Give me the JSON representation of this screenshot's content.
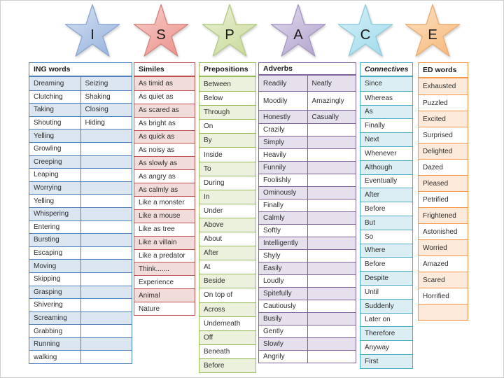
{
  "stars": [
    {
      "letter": "I",
      "light": "#d6e1f3",
      "dark": "#9db8e0",
      "stroke": "#8ca6cf"
    },
    {
      "letter": "S",
      "light": "#f8d2cf",
      "dark": "#ec968f",
      "stroke": "#d3847e"
    },
    {
      "letter": "P",
      "light": "#eaf2d8",
      "dark": "#cbdc9f",
      "stroke": "#b4ca85"
    },
    {
      "letter": "A",
      "light": "#e2dced",
      "dark": "#b7a9d1",
      "stroke": "#a597c2"
    },
    {
      "letter": "C",
      "light": "#d8f0f7",
      "dark": "#a5dded",
      "stroke": "#90cbdd"
    },
    {
      "letter": "E",
      "light": "#fce3c8",
      "dark": "#f7bc80",
      "stroke": "#e9ad6f"
    }
  ],
  "tables": [
    {
      "id": "ing-words",
      "title": "ING words",
      "columns": 2,
      "border": "#4f81bd",
      "shade": "#dce6f1",
      "rows": [
        [
          "Dreaming",
          "Seizing"
        ],
        [
          "Clutching",
          "Shaking"
        ],
        [
          "Taking",
          "Closing"
        ],
        [
          "Shouting",
          "Hiding"
        ],
        [
          "Yelling",
          ""
        ],
        [
          "Growling",
          ""
        ],
        [
          "Creeping",
          ""
        ],
        [
          "Leaping",
          ""
        ],
        [
          "Worrying",
          ""
        ],
        [
          "Yelling",
          ""
        ],
        [
          "Whispering",
          ""
        ],
        [
          "Entering",
          ""
        ],
        [
          "Bursting",
          ""
        ],
        [
          "Escaping",
          ""
        ],
        [
          "Moving",
          ""
        ],
        [
          "Skipping",
          ""
        ],
        [
          "Grasping",
          ""
        ],
        [
          "Shivering",
          ""
        ],
        [
          "Screaming",
          ""
        ],
        [
          "Grabbing",
          ""
        ],
        [
          "Running",
          ""
        ],
        [
          "walking",
          ""
        ]
      ]
    },
    {
      "id": "similes",
      "title": "Similes",
      "columns": 1,
      "border": "#c0504d",
      "shade": "#f2dcdb",
      "rows": [
        "As timid as",
        "As quiet as",
        "As scared as",
        "As bright as",
        "As quick as",
        "As noisy as",
        "As slowly as",
        "As angry as",
        "As calmly as",
        "Like a monster",
        "Like a mouse",
        "Like as tree",
        "Like a villain",
        "Like a predator",
        "Think.......",
        "Experience",
        "Animal",
        "Nature"
      ]
    },
    {
      "id": "prepositions",
      "title": "Prepositions",
      "columns": 1,
      "border": "#9bbb59",
      "shade": "#ebf1dd",
      "rows": [
        "Between",
        "Below",
        "Through",
        "On",
        "By",
        "Inside",
        "To",
        "During",
        "In",
        "Under",
        "Above",
        "About",
        "After",
        "At",
        "Beside",
        "On top of",
        "Across",
        "Underneath",
        "Off",
        "Beneath",
        "Before"
      ]
    },
    {
      "id": "adverbs",
      "title": "Adverbs",
      "columns": 2,
      "border": "#8064a2",
      "shade": "#e5e0ec",
      "rows": [
        [
          "Readily",
          "Neatly"
        ],
        [
          "Moodily",
          "Amazingly"
        ],
        [
          "Honestly",
          "Casually"
        ],
        [
          "Crazily",
          ""
        ],
        [
          "Simply",
          ""
        ],
        [
          "Heavily",
          ""
        ],
        [
          "Funnily",
          ""
        ],
        [
          "Foolishly",
          ""
        ],
        [
          "Ominously",
          ""
        ],
        [
          "Finally",
          ""
        ],
        [
          "Calmly",
          ""
        ],
        [
          "Softly",
          ""
        ],
        [
          "Intelligently",
          ""
        ],
        [
          "Shyly",
          ""
        ],
        [
          "Easily",
          ""
        ],
        [
          "Loudly",
          ""
        ],
        [
          "Spitefully",
          ""
        ],
        [
          "Cautiously",
          ""
        ],
        [
          "Busily",
          ""
        ],
        [
          "Gently",
          ""
        ],
        [
          "Slowly",
          ""
        ],
        [
          "Angrily",
          ""
        ]
      ]
    },
    {
      "id": "connectives",
      "title": "Connectives",
      "columns": 1,
      "italic": true,
      "border": "#4bacc6",
      "shade": "#daeef3",
      "rows": [
        "Since",
        "Whereas",
        "As",
        "Finally",
        "Next",
        "Whenever",
        "Although",
        "Eventually",
        "After",
        "Before",
        "But",
        "So",
        "Where",
        "Before",
        "Despite",
        "Until",
        "Suddenly",
        "Later on",
        "Therefore",
        "Anyway",
        "First"
      ]
    },
    {
      "id": "ed-words",
      "title": "ED words",
      "columns": 1,
      "border": "#f79646",
      "shade": "#fdeada",
      "rows": [
        "Exhausted",
        "Puzzled",
        "Excited",
        "Surprised",
        "Delighted",
        "Dazed",
        "Pleased",
        "Petrified",
        "Frightened",
        "Astonished",
        "Worried",
        "Amazed",
        "Scared",
        "Horrified",
        ""
      ]
    }
  ]
}
